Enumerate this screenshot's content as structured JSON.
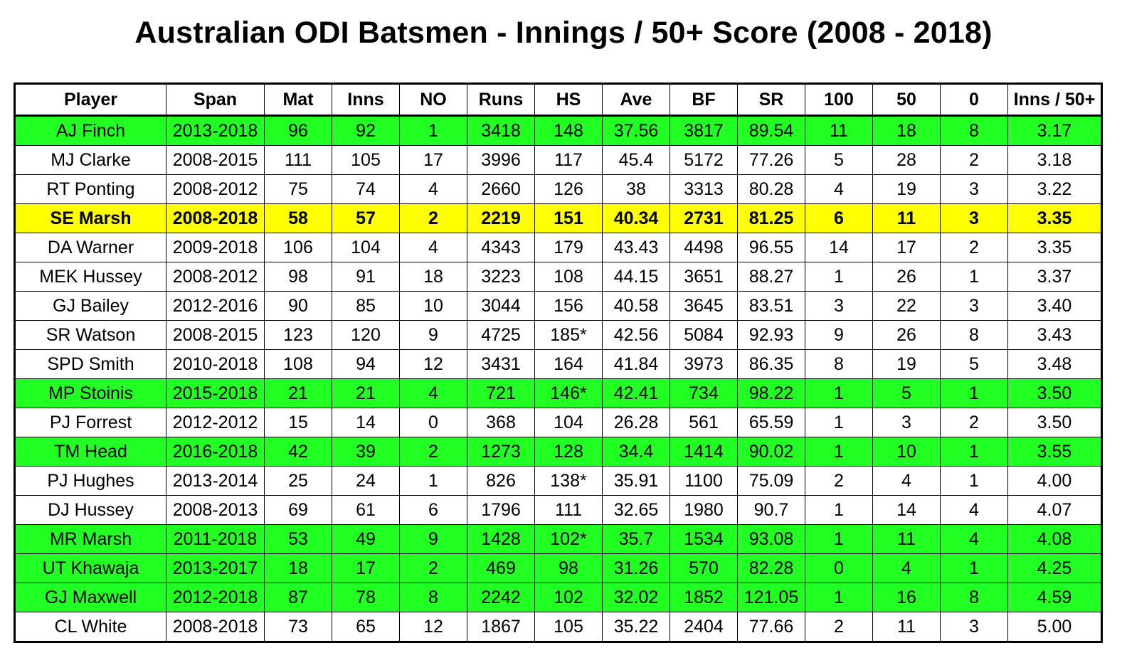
{
  "chart_data": {
    "type": "table",
    "title": "Australian ODI Batsmen - Innings / 50+ Score (2008 - 2018)",
    "columns": [
      "Player",
      "Span",
      "Mat",
      "Inns",
      "NO",
      "Runs",
      "HS",
      "Ave",
      "BF",
      "SR",
      "100",
      "50",
      "0",
      "Inns / 50+"
    ],
    "highlight_colors": {
      "green": "#22ff22",
      "yellow": "#ffff00"
    },
    "rows": [
      {
        "highlight": "green",
        "cells": [
          "AJ Finch",
          "2013-2018",
          "96",
          "92",
          "1",
          "3418",
          "148",
          "37.56",
          "3817",
          "89.54",
          "11",
          "18",
          "8",
          "3.17"
        ]
      },
      {
        "highlight": "none",
        "cells": [
          "MJ Clarke",
          "2008-2015",
          "111",
          "105",
          "17",
          "3996",
          "117",
          "45.4",
          "5172",
          "77.26",
          "5",
          "28",
          "2",
          "3.18"
        ]
      },
      {
        "highlight": "none",
        "cells": [
          "RT Ponting",
          "2008-2012",
          "75",
          "74",
          "4",
          "2660",
          "126",
          "38",
          "3313",
          "80.28",
          "4",
          "19",
          "3",
          "3.22"
        ]
      },
      {
        "highlight": "yellow",
        "cells": [
          "SE Marsh",
          "2008-2018",
          "58",
          "57",
          "2",
          "2219",
          "151",
          "40.34",
          "2731",
          "81.25",
          "6",
          "11",
          "3",
          "3.35"
        ]
      },
      {
        "highlight": "none",
        "cells": [
          "DA Warner",
          "2009-2018",
          "106",
          "104",
          "4",
          "4343",
          "179",
          "43.43",
          "4498",
          "96.55",
          "14",
          "17",
          "2",
          "3.35"
        ]
      },
      {
        "highlight": "none",
        "cells": [
          "MEK Hussey",
          "2008-2012",
          "98",
          "91",
          "18",
          "3223",
          "108",
          "44.15",
          "3651",
          "88.27",
          "1",
          "26",
          "1",
          "3.37"
        ]
      },
      {
        "highlight": "none",
        "cells": [
          "GJ Bailey",
          "2012-2016",
          "90",
          "85",
          "10",
          "3044",
          "156",
          "40.58",
          "3645",
          "83.51",
          "3",
          "22",
          "3",
          "3.40"
        ]
      },
      {
        "highlight": "none",
        "cells": [
          "SR Watson",
          "2008-2015",
          "123",
          "120",
          "9",
          "4725",
          "185*",
          "42.56",
          "5084",
          "92.93",
          "9",
          "26",
          "8",
          "3.43"
        ]
      },
      {
        "highlight": "none",
        "cells": [
          "SPD Smith",
          "2010-2018",
          "108",
          "94",
          "12",
          "3431",
          "164",
          "41.84",
          "3973",
          "86.35",
          "8",
          "19",
          "5",
          "3.48"
        ]
      },
      {
        "highlight": "green",
        "cells": [
          "MP Stoinis",
          "2015-2018",
          "21",
          "21",
          "4",
          "721",
          "146*",
          "42.41",
          "734",
          "98.22",
          "1",
          "5",
          "1",
          "3.50"
        ]
      },
      {
        "highlight": "none",
        "cells": [
          "PJ Forrest",
          "2012-2012",
          "15",
          "14",
          "0",
          "368",
          "104",
          "26.28",
          "561",
          "65.59",
          "1",
          "3",
          "2",
          "3.50"
        ]
      },
      {
        "highlight": "green",
        "cells": [
          "TM Head",
          "2016-2018",
          "42",
          "39",
          "2",
          "1273",
          "128",
          "34.4",
          "1414",
          "90.02",
          "1",
          "10",
          "1",
          "3.55"
        ]
      },
      {
        "highlight": "none",
        "cells": [
          "PJ Hughes",
          "2013-2014",
          "25",
          "24",
          "1",
          "826",
          "138*",
          "35.91",
          "1100",
          "75.09",
          "2",
          "4",
          "1",
          "4.00"
        ]
      },
      {
        "highlight": "none",
        "cells": [
          "DJ Hussey",
          "2008-2013",
          "69",
          "61",
          "6",
          "1796",
          "111",
          "32.65",
          "1980",
          "90.7",
          "1",
          "14",
          "4",
          "4.07"
        ]
      },
      {
        "highlight": "green",
        "cells": [
          "MR Marsh",
          "2011-2018",
          "53",
          "49",
          "9",
          "1428",
          "102*",
          "35.7",
          "1534",
          "93.08",
          "1",
          "11",
          "4",
          "4.08"
        ]
      },
      {
        "highlight": "green",
        "cells": [
          "UT Khawaja",
          "2013-2017",
          "18",
          "17",
          "2",
          "469",
          "98",
          "31.26",
          "570",
          "82.28",
          "0",
          "4",
          "1",
          "4.25"
        ]
      },
      {
        "highlight": "green",
        "cells": [
          "GJ Maxwell",
          "2012-2018",
          "87",
          "78",
          "8",
          "2242",
          "102",
          "32.02",
          "1852",
          "121.05",
          "1",
          "16",
          "8",
          "4.59"
        ]
      },
      {
        "highlight": "none",
        "cells": [
          "CL White",
          "2008-2018",
          "73",
          "65",
          "12",
          "1867",
          "105",
          "35.22",
          "2404",
          "77.66",
          "2",
          "11",
          "3",
          "5.00"
        ]
      }
    ]
  }
}
